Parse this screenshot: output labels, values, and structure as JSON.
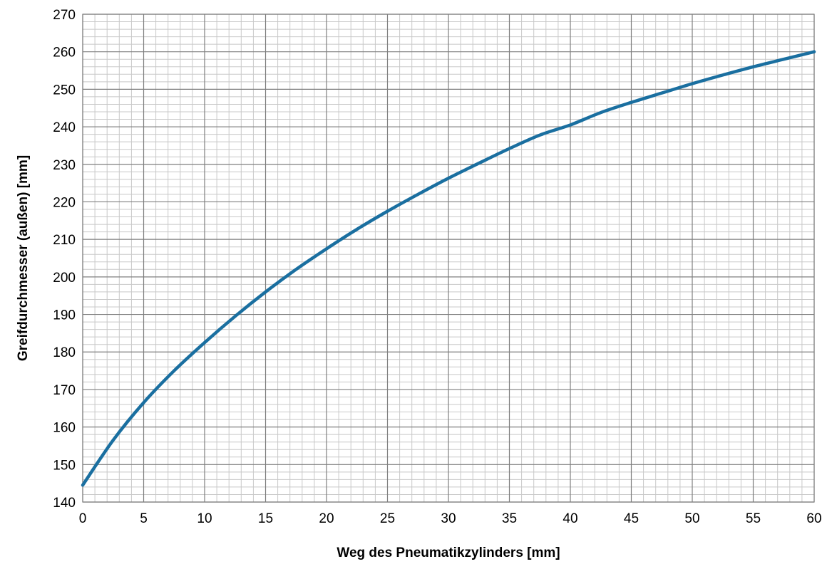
{
  "chart_data": {
    "type": "line",
    "title": "",
    "xlabel": "Weg des Pneumatikzylinders [mm]",
    "ylabel": "Greifdurchmesser (außen) [mm]",
    "xlim": [
      0,
      60
    ],
    "ylim": [
      140,
      270
    ],
    "x_ticks": [
      0,
      5,
      10,
      15,
      20,
      25,
      30,
      35,
      40,
      45,
      50,
      55,
      60
    ],
    "y_ticks": [
      140,
      150,
      160,
      170,
      180,
      190,
      200,
      210,
      220,
      230,
      240,
      250,
      260,
      270
    ],
    "x_minor_step": 1,
    "y_minor_step": 2,
    "grid": true,
    "legend": "none",
    "colors": {
      "line": "#1a6fa0",
      "major_grid": "#7f7f7f",
      "minor_grid": "#c8c8c8"
    },
    "series": [
      {
        "x": [
          0,
          2.5,
          5,
          7.5,
          10,
          12.5,
          15,
          17.5,
          20,
          22.5,
          25,
          27.5,
          30,
          32.5,
          35,
          37.5,
          40,
          42.5,
          45,
          47.5,
          50,
          52.5,
          55,
          57.5,
          60
        ],
        "values": [
          144.5,
          156.5,
          166.5,
          175.0,
          182.5,
          189.5,
          196.0,
          202.0,
          207.5,
          212.7,
          217.5,
          222.0,
          226.3,
          230.3,
          234.2,
          237.8,
          240.5,
          243.8,
          246.5,
          249.0,
          251.5,
          253.8,
          256.0,
          258.0,
          260.0
        ]
      }
    ]
  }
}
